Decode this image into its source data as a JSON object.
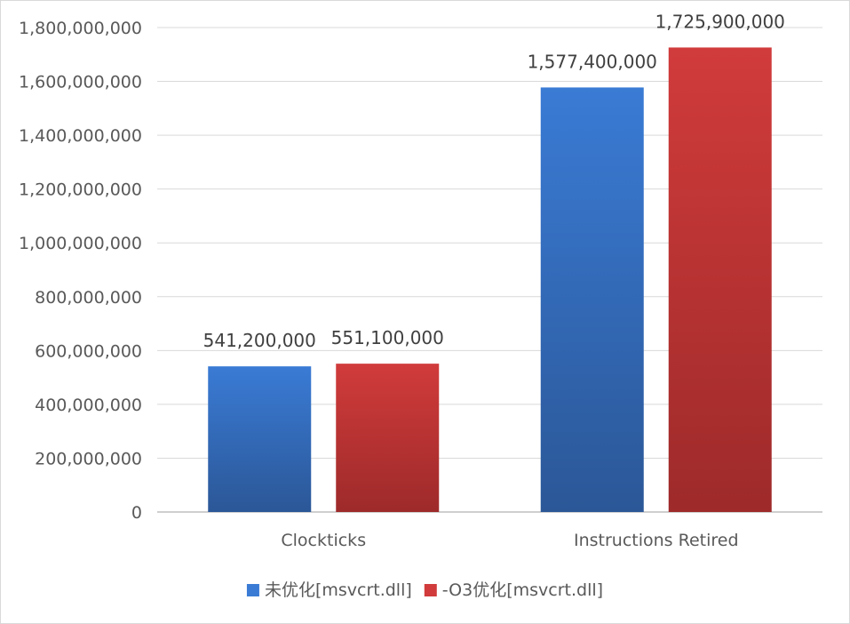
{
  "chart_data": {
    "type": "bar",
    "categories": [
      "Clockticks",
      "Instructions Retired"
    ],
    "series": [
      {
        "name": "未优化[msvcrt.dll]",
        "values": [
          541200000,
          1577400000
        ],
        "color": "#3a7bd5",
        "color_dark": "#2b5797"
      },
      {
        "name": "-O3优化[msvcrt.dll]",
        "values": [
          551100000,
          1725900000
        ],
        "color": "#d13b3b",
        "color_dark": "#9e2a2a"
      }
    ],
    "data_labels": [
      [
        "541,200,000",
        "1,577,400,000"
      ],
      [
        "551,100,000",
        "1,725,900,000"
      ]
    ],
    "yticks": [
      "0",
      "200,000,000",
      "400,000,000",
      "600,000,000",
      "800,000,000",
      "1,000,000,000",
      "1,200,000,000",
      "1,400,000,000",
      "1,600,000,000",
      "1,800,000,000"
    ],
    "ylim": [
      0,
      1800000000
    ],
    "title": "",
    "xlabel": "",
    "ylabel": "",
    "grid": true,
    "legend_position": "bottom"
  }
}
